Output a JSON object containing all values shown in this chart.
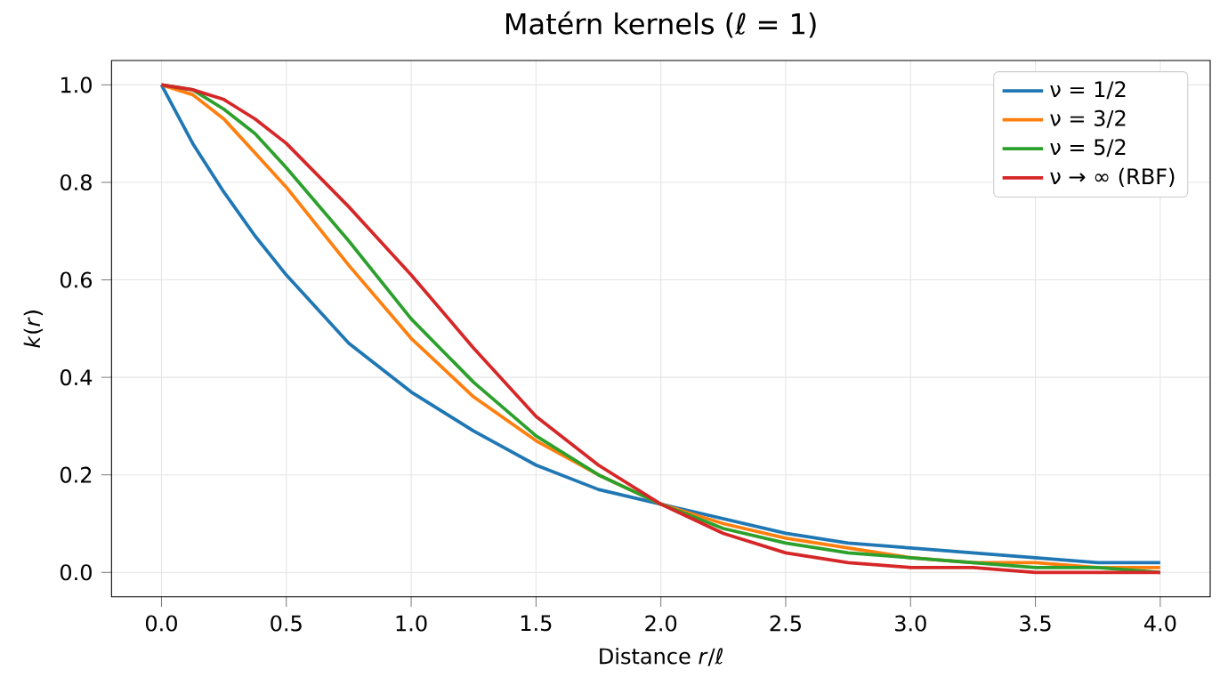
{
  "chart_data": {
    "type": "line",
    "title": "Matérn kernels (ℓ = 1)",
    "xlabel": "Distance *r*/*ℓ*",
    "ylabel": "*k*(*r*)",
    "x": [
      0,
      0.125,
      0.25,
      0.375,
      0.5,
      0.75,
      1,
      1.25,
      1.5,
      1.75,
      2,
      2.25,
      2.5,
      2.75,
      3,
      3.25,
      3.5,
      3.75,
      4
    ],
    "series": [
      {
        "name": "ν = 1/2",
        "color": "#1f77b4",
        "values": [
          1.0,
          0.88,
          0.78,
          0.69,
          0.61,
          0.47,
          0.37,
          0.29,
          0.22,
          0.17,
          0.14,
          0.11,
          0.08,
          0.06,
          0.05,
          0.04,
          0.03,
          0.02,
          0.02
        ]
      },
      {
        "name": "ν = 3/2",
        "color": "#ff7f0e",
        "values": [
          1.0,
          0.98,
          0.93,
          0.86,
          0.79,
          0.63,
          0.48,
          0.36,
          0.27,
          0.2,
          0.14,
          0.1,
          0.07,
          0.05,
          0.03,
          0.02,
          0.02,
          0.01,
          0.01
        ]
      },
      {
        "name": "ν = 5/2",
        "color": "#2ca02c",
        "values": [
          1.0,
          0.99,
          0.95,
          0.9,
          0.83,
          0.68,
          0.52,
          0.39,
          0.28,
          0.2,
          0.14,
          0.09,
          0.06,
          0.04,
          0.03,
          0.02,
          0.01,
          0.01,
          0.0
        ]
      },
      {
        "name": "ν → ∞ (RBF)",
        "color": "#d62728",
        "values": [
          1.0,
          0.99,
          0.97,
          0.93,
          0.88,
          0.75,
          0.61,
          0.46,
          0.32,
          0.22,
          0.14,
          0.08,
          0.04,
          0.02,
          0.01,
          0.01,
          0.0,
          0.0,
          0.0
        ]
      }
    ],
    "xlim": [
      -0.2,
      4.2
    ],
    "ylim": [
      -0.05,
      1.05
    ],
    "xticks": [
      {
        "value": 0,
        "label": "0.0"
      },
      {
        "value": 0.5,
        "label": "0.5"
      },
      {
        "value": 1,
        "label": "1.0"
      },
      {
        "value": 1.5,
        "label": "1.5"
      },
      {
        "value": 2,
        "label": "2.0"
      },
      {
        "value": 2.5,
        "label": "2.5"
      },
      {
        "value": 3,
        "label": "3.0"
      },
      {
        "value": 3.5,
        "label": "3.5"
      },
      {
        "value": 4,
        "label": "4.0"
      }
    ],
    "yticks": [
      {
        "value": 0,
        "label": "0.0"
      },
      {
        "value": 0.2,
        "label": "0.2"
      },
      {
        "value": 0.4,
        "label": "0.4"
      },
      {
        "value": 0.6,
        "label": "0.6"
      },
      {
        "value": 0.8,
        "label": "0.8"
      },
      {
        "value": 1,
        "label": "1.0"
      }
    ],
    "grid": true,
    "legend": "top right",
    "marker": "none",
    "line_style": "solid"
  }
}
